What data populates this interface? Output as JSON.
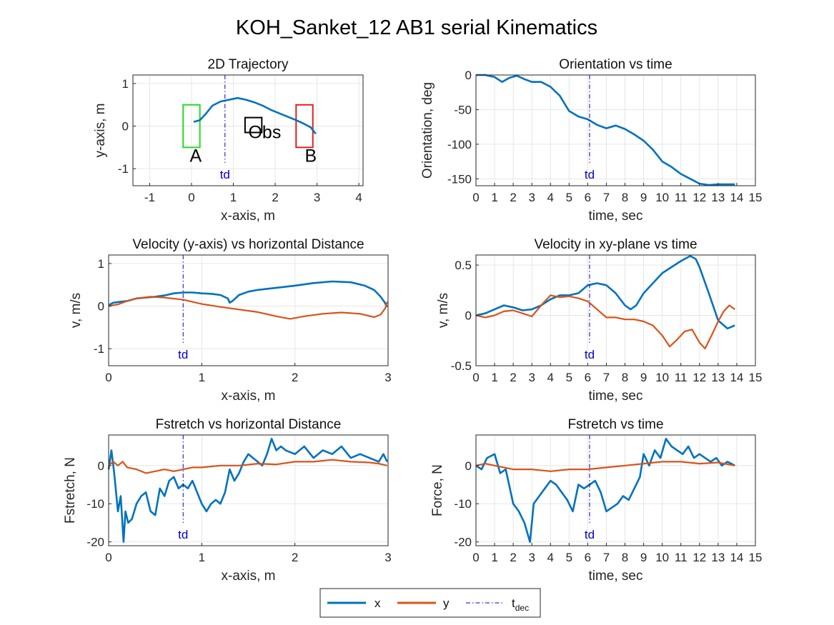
{
  "title": "KOH_Sanket_12    AB1    serial    Kinematics",
  "colors": {
    "x": "#0072BD",
    "y": "#D95319",
    "tdec": "#0000CC",
    "rectA": "#22DD22",
    "rectB": "#DD2222",
    "obs": "#000000",
    "grid": "#e6e6e6"
  },
  "legend": {
    "entries": [
      {
        "key": "x",
        "label": "x"
      },
      {
        "key": "y",
        "label": "y"
      }
    ],
    "tdec_main": "t",
    "tdec_sub": "dec"
  },
  "chart_data": [
    {
      "type": "line",
      "title": "2D Trajectory",
      "xlabel": "x-axis, m",
      "ylabel": "y-axis, m",
      "xlim": [
        -1.4,
        4.1
      ],
      "ylim": [
        -1.4,
        1.2
      ],
      "xticks": [
        -1,
        0,
        1,
        2,
        3,
        4
      ],
      "yticks": [
        -1,
        0,
        1
      ],
      "grid": true,
      "td": 0.8,
      "td_label": "td",
      "series": [
        {
          "key": "x",
          "x": [
            0.05,
            0.2,
            0.35,
            0.5,
            0.7,
            0.9,
            1.1,
            1.3,
            1.5,
            1.7,
            1.9,
            2.1,
            2.3,
            2.5,
            2.7,
            2.85,
            2.97
          ],
          "y": [
            0.1,
            0.14,
            0.3,
            0.48,
            0.58,
            0.62,
            0.66,
            0.62,
            0.56,
            0.48,
            0.38,
            0.3,
            0.22,
            0.14,
            0.05,
            -0.03,
            -0.18
          ]
        }
      ],
      "rects": [
        {
          "key": "rectA",
          "x0": -0.2,
          "x1": 0.2,
          "y0": -0.5,
          "y1": 0.5
        },
        {
          "key": "rectB",
          "x0": 2.5,
          "x1": 2.9,
          "y0": -0.5,
          "y1": 0.5
        },
        {
          "key": "obs",
          "x0": 1.28,
          "x1": 1.68,
          "y0": -0.15,
          "y1": 0.2
        }
      ],
      "annotations": [
        {
          "text": "A",
          "x": 0.1,
          "y": -0.6
        },
        {
          "text": "B",
          "x": 2.85,
          "y": -0.6
        },
        {
          "text": "Obs",
          "x": 1.75,
          "y": -0.05
        }
      ]
    },
    {
      "type": "line",
      "title": "Orientation vs time",
      "xlabel": "time, sec",
      "ylabel": "Orientation, deg",
      "xlim": [
        0,
        15
      ],
      "ylim": [
        -160,
        0
      ],
      "xticks": [
        0,
        1,
        2,
        3,
        4,
        5,
        6,
        7,
        8,
        9,
        10,
        11,
        12,
        13,
        14,
        15
      ],
      "yticks": [
        -150,
        -100,
        -50,
        0
      ],
      "grid": true,
      "td": 6.1,
      "td_label": "td",
      "series": [
        {
          "key": "x",
          "x": [
            0,
            0.5,
            1,
            1.4,
            1.8,
            2.2,
            2.6,
            3,
            3.5,
            4,
            4.5,
            5,
            5.5,
            6,
            6.5,
            7,
            7.5,
            8,
            8.5,
            9,
            9.5,
            10,
            10.5,
            11,
            11.5,
            12,
            12.5,
            13,
            13.5,
            13.9
          ],
          "y": [
            0,
            0,
            -3,
            -10,
            -4,
            -1,
            -6,
            -10,
            -10,
            -17,
            -30,
            -52,
            -60,
            -64,
            -72,
            -77,
            -73,
            -78,
            -86,
            -95,
            -108,
            -125,
            -133,
            -143,
            -150,
            -157,
            -159,
            -158,
            -158,
            -158
          ]
        }
      ]
    },
    {
      "type": "line",
      "title": "Velocity (y-axis) vs horizontal Distance",
      "xlabel": "x-axis, m",
      "ylabel": "v, m/s",
      "xlim": [
        0,
        3
      ],
      "ylim": [
        -1.4,
        1.2
      ],
      "xticks": [
        0,
        1,
        2,
        3
      ],
      "yticks": [
        -1,
        0,
        1
      ],
      "grid": true,
      "td": 0.8,
      "td_label": "td",
      "series": [
        {
          "key": "x",
          "x": [
            0,
            0.05,
            0.12,
            0.2,
            0.3,
            0.4,
            0.5,
            0.6,
            0.7,
            0.8,
            0.9,
            1.0,
            1.1,
            1.2,
            1.28,
            1.3,
            1.33,
            1.4,
            1.5,
            1.6,
            1.8,
            2.0,
            2.2,
            2.4,
            2.6,
            2.75,
            2.85,
            2.92,
            2.96,
            2.99
          ],
          "y": [
            0.02,
            0.08,
            0.1,
            0.12,
            0.18,
            0.2,
            0.22,
            0.25,
            0.3,
            0.32,
            0.32,
            0.3,
            0.29,
            0.26,
            0.18,
            0.08,
            0.12,
            0.26,
            0.34,
            0.38,
            0.43,
            0.48,
            0.54,
            0.58,
            0.56,
            0.48,
            0.38,
            0.22,
            0.1,
            -0.02
          ]
        },
        {
          "key": "y",
          "x": [
            0,
            0.05,
            0.1,
            0.2,
            0.3,
            0.45,
            0.6,
            0.8,
            1.0,
            1.2,
            1.4,
            1.6,
            1.8,
            1.95,
            2.1,
            2.3,
            2.5,
            2.7,
            2.85,
            2.92,
            2.97,
            2.99
          ],
          "y": [
            0,
            0.02,
            0.04,
            0.12,
            0.18,
            0.22,
            0.2,
            0.15,
            0.05,
            -0.02,
            -0.08,
            -0.14,
            -0.24,
            -0.3,
            -0.24,
            -0.18,
            -0.15,
            -0.18,
            -0.26,
            -0.2,
            -0.05,
            0.1
          ]
        }
      ]
    },
    {
      "type": "line",
      "title": "Velocity in xy-plane vs time",
      "xlabel": "time, sec",
      "ylabel": "v, m/s",
      "xlim": [
        0,
        15
      ],
      "ylim": [
        -0.5,
        0.6
      ],
      "xticks": [
        0,
        1,
        2,
        3,
        4,
        5,
        6,
        7,
        8,
        9,
        10,
        11,
        12,
        13,
        14,
        15
      ],
      "yticks": [
        -0.5,
        0,
        0.5
      ],
      "grid": true,
      "td": 6.1,
      "td_label": "td",
      "series": [
        {
          "key": "x",
          "x": [
            0,
            0.5,
            1,
            1.5,
            2,
            2.5,
            3,
            3.5,
            4,
            4.5,
            5,
            5.5,
            6,
            6.5,
            7,
            7.5,
            8,
            8.3,
            8.6,
            9,
            9.5,
            10,
            10.5,
            11,
            11.5,
            11.8,
            12,
            12.5,
            13,
            13.5,
            13.9
          ],
          "y": [
            0,
            0.02,
            0.06,
            0.1,
            0.08,
            0.05,
            0.06,
            0.1,
            0.16,
            0.2,
            0.2,
            0.22,
            0.3,
            0.32,
            0.3,
            0.22,
            0.1,
            0.06,
            0.1,
            0.22,
            0.32,
            0.42,
            0.48,
            0.54,
            0.59,
            0.56,
            0.48,
            0.22,
            -0.05,
            -0.13,
            -0.1
          ]
        },
        {
          "key": "y",
          "x": [
            0,
            0.5,
            1,
            1.5,
            2,
            2.5,
            3,
            3.5,
            4,
            4.5,
            5,
            5.5,
            6,
            6.5,
            7,
            7.5,
            8,
            8.5,
            9,
            9.5,
            10,
            10.4,
            10.8,
            11.2,
            11.6,
            12,
            12.3,
            12.7,
            13,
            13.3,
            13.6,
            13.9
          ],
          "y": [
            0,
            -0.02,
            0,
            0.04,
            0.05,
            0.02,
            -0.01,
            0.1,
            0.2,
            0.18,
            0.19,
            0.17,
            0.14,
            0.06,
            -0.02,
            -0.02,
            -0.04,
            -0.04,
            -0.06,
            -0.1,
            -0.2,
            -0.31,
            -0.24,
            -0.16,
            -0.14,
            -0.27,
            -0.33,
            -0.18,
            -0.06,
            0.04,
            0.1,
            0.06
          ]
        }
      ]
    },
    {
      "type": "line",
      "title": "Fstretch vs horizontal Distance",
      "xlabel": "x-axis, m",
      "ylabel": "Fstretch, N",
      "xlim": [
        0,
        3
      ],
      "ylim": [
        -21,
        8
      ],
      "xticks": [
        0,
        1,
        2,
        3
      ],
      "yticks": [
        -20,
        -10,
        0
      ],
      "grid": true,
      "td": 0.8,
      "td_label": "td",
      "series": [
        {
          "key": "x",
          "x": [
            0,
            0.03,
            0.06,
            0.1,
            0.13,
            0.16,
            0.18,
            0.21,
            0.25,
            0.3,
            0.35,
            0.4,
            0.45,
            0.5,
            0.55,
            0.6,
            0.65,
            0.7,
            0.75,
            0.8,
            0.85,
            0.9,
            0.95,
            1.0,
            1.05,
            1.1,
            1.15,
            1.2,
            1.25,
            1.3,
            1.35,
            1.4,
            1.45,
            1.5,
            1.55,
            1.6,
            1.65,
            1.7,
            1.75,
            1.8,
            1.85,
            1.9,
            2.0,
            2.1,
            2.2,
            2.3,
            2.4,
            2.5,
            2.6,
            2.7,
            2.8,
            2.9,
            2.95,
            2.99
          ],
          "y": [
            -1,
            4,
            -2,
            -12,
            -8,
            -20,
            -12,
            -15,
            -14,
            -10,
            -8,
            -7,
            -12,
            -13,
            -6,
            -8,
            -4,
            -3,
            -6,
            -5,
            -6,
            -4,
            -7,
            -10,
            -12,
            -10,
            -9,
            -10,
            -7,
            -1,
            -4,
            -2,
            1,
            3,
            2,
            1,
            0,
            3,
            7,
            4,
            5,
            4,
            3,
            5,
            2,
            4,
            3,
            5,
            2,
            3,
            2,
            1,
            3,
            1
          ]
        },
        {
          "key": "y",
          "x": [
            0,
            0.05,
            0.1,
            0.15,
            0.2,
            0.3,
            0.4,
            0.5,
            0.6,
            0.7,
            0.8,
            0.9,
            1.0,
            1.2,
            1.4,
            1.6,
            1.8,
            2.0,
            2.2,
            2.4,
            2.6,
            2.8,
            2.9,
            2.99
          ],
          "y": [
            0,
            1,
            0,
            1,
            -0.5,
            -1,
            -2,
            -1.5,
            -1,
            -1.5,
            -1,
            -0.5,
            -0.5,
            0,
            0,
            0.5,
            0.3,
            1,
            1,
            1.5,
            1,
            0.8,
            0.5,
            0
          ]
        }
      ]
    },
    {
      "type": "line",
      "title": "Fstretch vs time",
      "xlabel": "time, sec",
      "ylabel": "Force, N",
      "xlim": [
        0,
        15
      ],
      "ylim": [
        -21,
        8
      ],
      "xticks": [
        0,
        1,
        2,
        3,
        4,
        5,
        6,
        7,
        8,
        9,
        10,
        11,
        12,
        13,
        14,
        15
      ],
      "yticks": [
        -20,
        -10,
        0
      ],
      "grid": true,
      "td": 6.1,
      "td_label": "td",
      "series": [
        {
          "key": "x",
          "x": [
            0,
            0.3,
            0.6,
            1,
            1.3,
            1.6,
            2,
            2.3,
            2.6,
            2.9,
            3.1,
            3.4,
            3.7,
            4,
            4.3,
            4.6,
            4.9,
            5.2,
            5.5,
            5.8,
            6.1,
            6.4,
            6.7,
            7,
            7.3,
            7.6,
            7.9,
            8.2,
            8.5,
            8.8,
            9,
            9.3,
            9.6,
            9.9,
            10.2,
            10.5,
            10.8,
            11.1,
            11.4,
            11.7,
            12,
            12.3,
            12.6,
            12.9,
            13.2,
            13.5,
            13.9
          ],
          "y": [
            0,
            -1,
            2,
            3,
            -2,
            -1,
            -10,
            -12,
            -15,
            -20,
            -10,
            -8,
            -6,
            -4,
            -5,
            -7,
            -9,
            -12,
            -5,
            -6,
            -5,
            -4,
            -7,
            -12,
            -11,
            -10,
            -8,
            -9,
            -6,
            -3,
            3,
            0,
            4,
            2,
            7,
            5,
            4,
            3,
            5,
            2,
            3,
            2,
            1,
            2,
            0,
            1,
            0
          ]
        },
        {
          "key": "y",
          "x": [
            0,
            0.5,
            1,
            2,
            3,
            4,
            5,
            6,
            7,
            8,
            9,
            10,
            11,
            12,
            13,
            13.9
          ],
          "y": [
            0,
            0.5,
            0,
            -1,
            -1,
            -1.5,
            -1,
            -1,
            -0.5,
            0,
            0.5,
            1,
            1,
            0.5,
            0.8,
            0
          ]
        }
      ]
    }
  ]
}
